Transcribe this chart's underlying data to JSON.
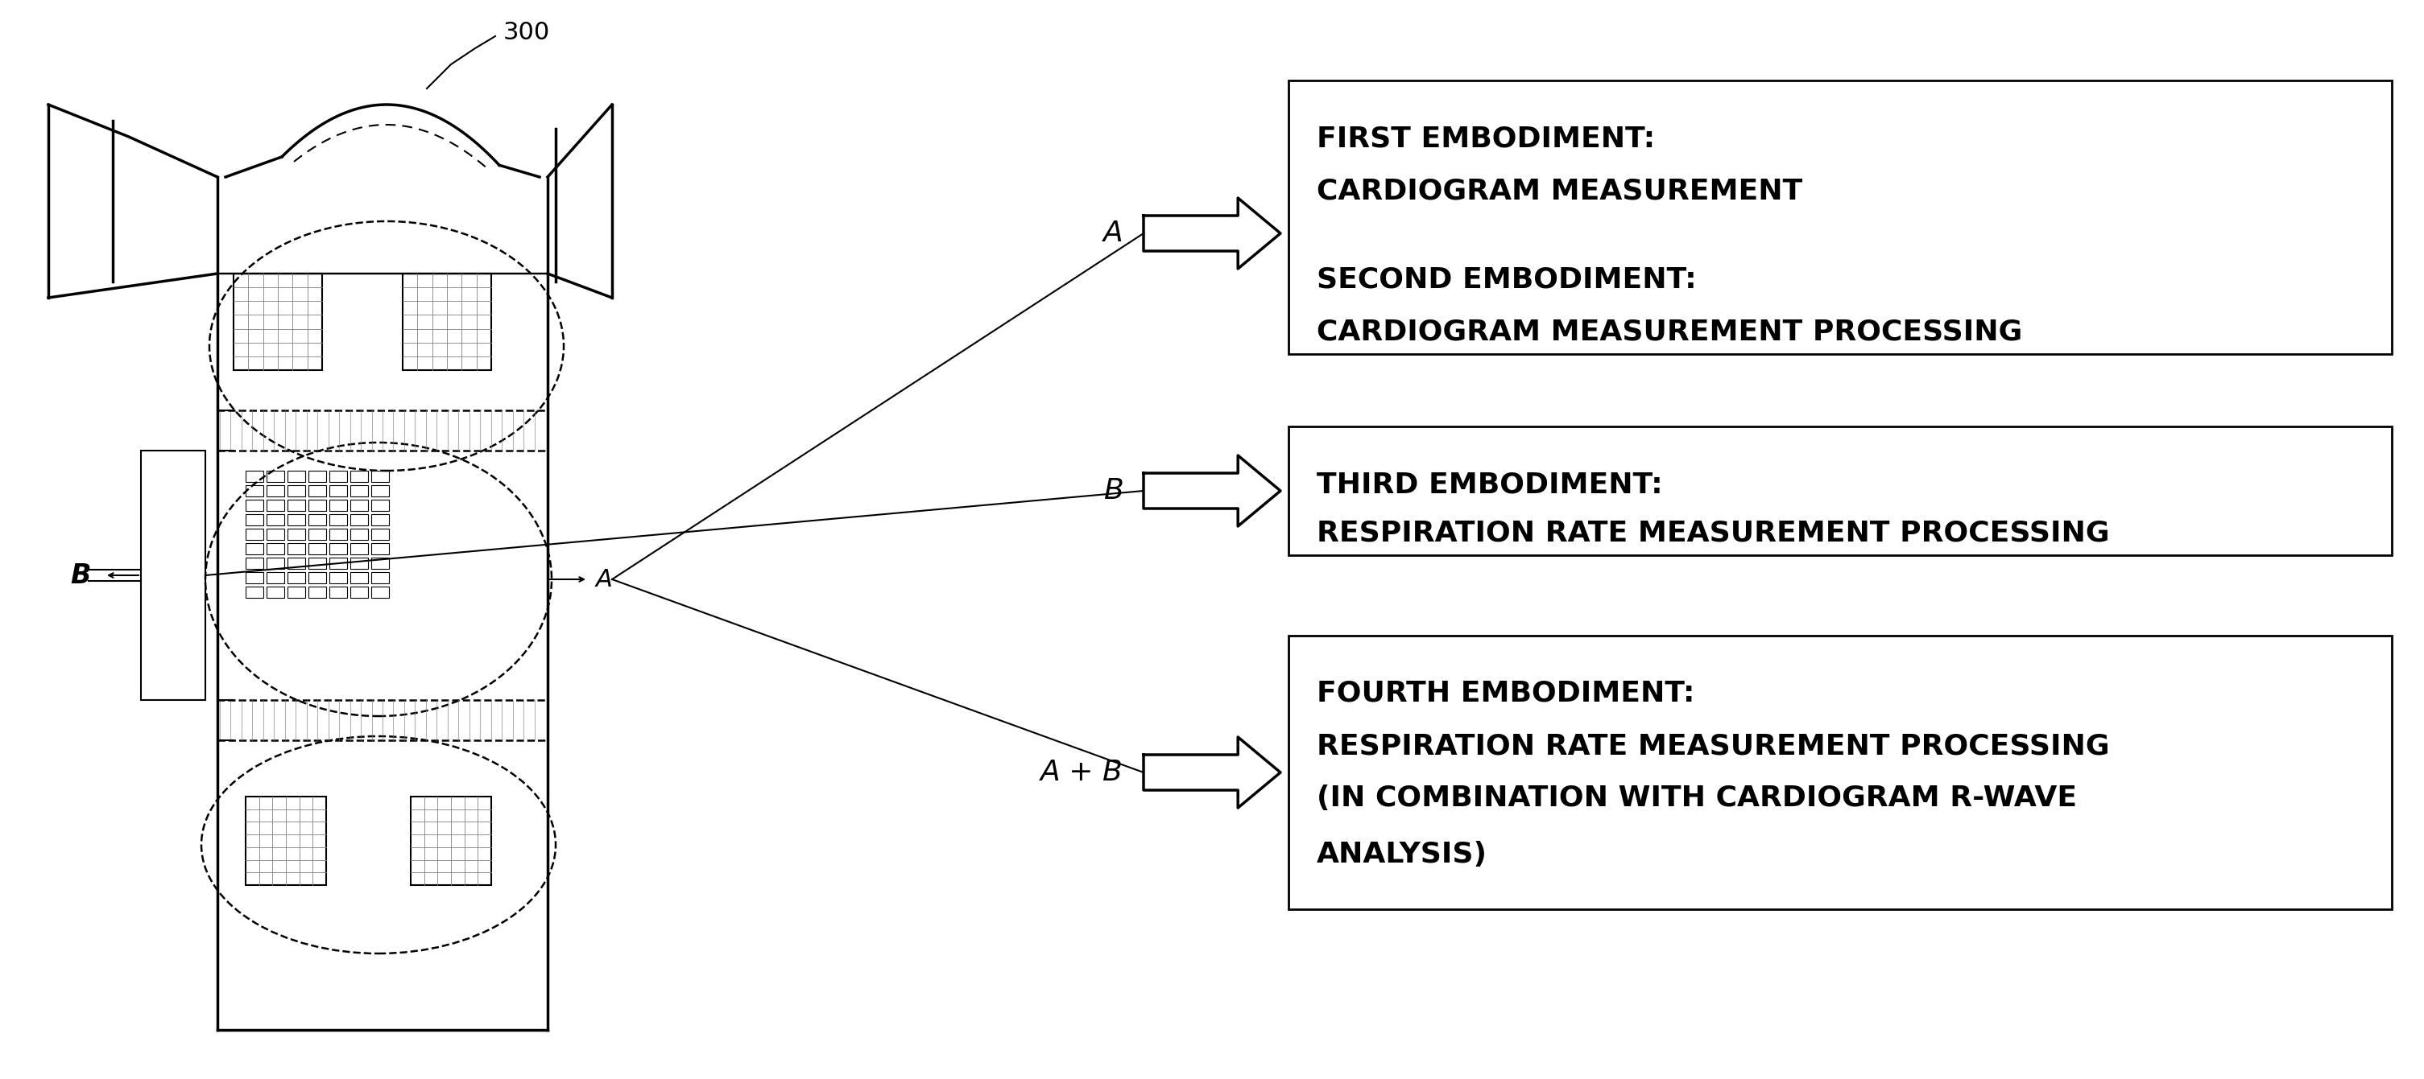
{
  "bg_color": "#ffffff",
  "label_300": "300",
  "box1_lines_1": "FIRST EMBODIMENT:",
  "box1_lines_2": "CARDIOGRAM MEASUREMENT",
  "box1_lines_3": "SECOND EMBODIMENT:",
  "box1_lines_4": "CARDIOGRAM MEASUREMENT PROCESSING",
  "box2_lines_1": "THIRD EMBODIMENT:",
  "box2_lines_2": "RESPIRATION RATE MEASUREMENT PROCESSING",
  "box3_lines_1": "FOURTH EMBODIMENT:",
  "box3_lines_2": "RESPIRATION RATE MEASUREMENT PROCESSING",
  "box3_lines_3": "(IN COMBINATION WITH CARDIOGRAM R-WAVE",
  "box3_lines_4": "ANALYSIS)",
  "label_A": "A",
  "label_B": "B",
  "label_AB": "A + B"
}
